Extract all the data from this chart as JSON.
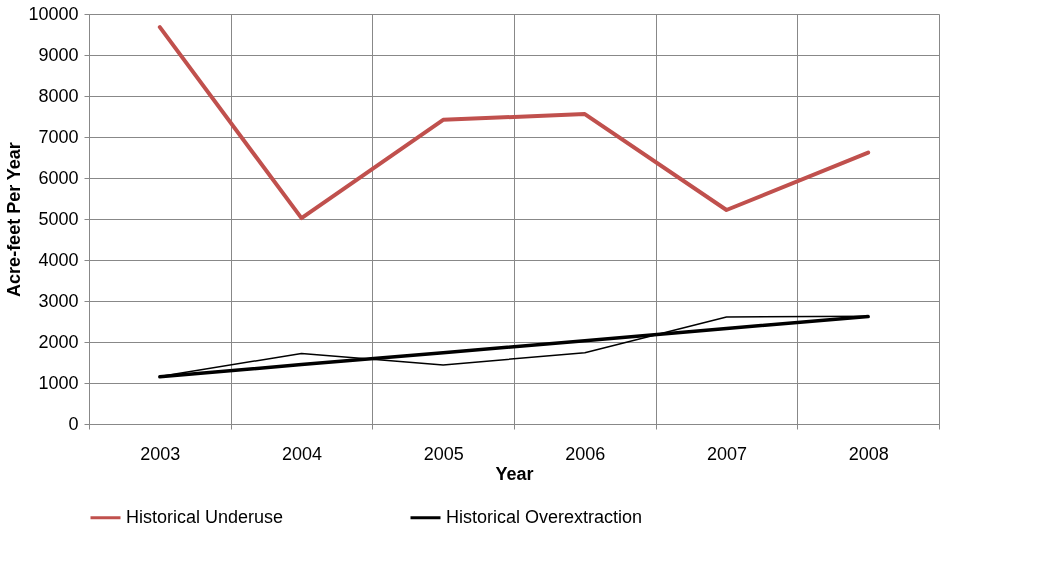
{
  "chart_data": {
    "type": "line",
    "xlabel": "Year",
    "ylabel": "Acre-feet Per Year",
    "categories": [
      "2003",
      "2004",
      "2005",
      "2006",
      "2007",
      "2008"
    ],
    "series": [
      {
        "name": "Historical Underuse",
        "color": "#c0504d",
        "values": [
          9680,
          5020,
          7420,
          7560,
          5220,
          6620
        ]
      },
      {
        "name": "Historical Overextraction",
        "color": "#000000",
        "values": [
          1160,
          1720,
          1440,
          1740,
          2610,
          2630
        ]
      },
      {
        "type": "line",
        "color": "#000000",
        "values": [
          1150,
          1450,
          1740,
          2030,
          2330,
          2620
        ]
      }
    ],
    "ylim": [
      0,
      10000
    ],
    "yticks": [
      0,
      1000,
      2000,
      3000,
      4000,
      5000,
      6000,
      7000,
      8000,
      9000,
      10000
    ],
    "grid": true,
    "legend": "bottom",
    "marker": "none",
    "line_style": "solid"
  }
}
